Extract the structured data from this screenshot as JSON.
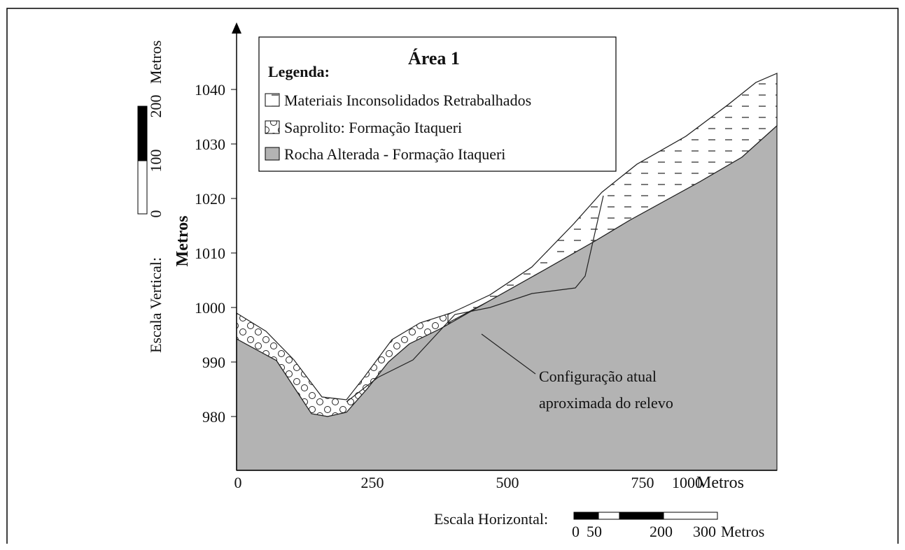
{
  "title": "Área 1",
  "legend": {
    "heading": "Legenda:",
    "items": [
      "Materiais Inconsolidados Retrabalhados",
      "Saprolito: Formação Itaqueri",
      "Rocha Alterada - Formação Itaqueri"
    ]
  },
  "y_axis": {
    "label": "Metros",
    "ticks": [
      1040,
      1030,
      1020,
      1010,
      1000,
      990,
      980
    ]
  },
  "x_axis": {
    "ticks": [
      0,
      250,
      500,
      750,
      1000
    ],
    "unit": "Metros"
  },
  "vertical_scale": {
    "label": "Escala Vertical:",
    "ticks": [
      0,
      100,
      200
    ],
    "unit": "Metros"
  },
  "horizontal_scale": {
    "label": "Escala Horizontal:",
    "ticks": [
      0,
      50,
      200,
      300
    ],
    "unit": "Metros"
  },
  "annotation": [
    "Configuração atual",
    "aproximada do relevo"
  ]
}
